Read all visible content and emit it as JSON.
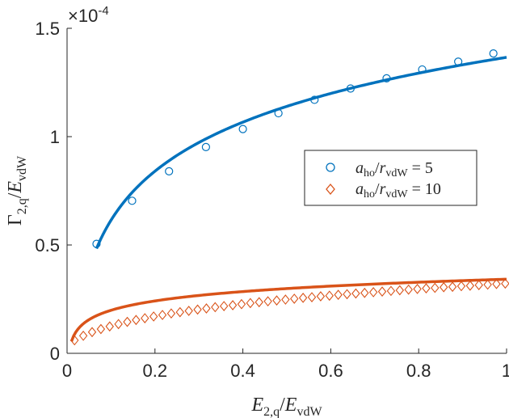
{
  "chart_data": {
    "type": "scatter",
    "xlim": [
      0,
      1
    ],
    "ylim": [
      0,
      1.5
    ],
    "x_ticks": [
      "0",
      "0.2",
      "0.4",
      "0.6",
      "0.8",
      "1"
    ],
    "y_ticks": [
      "0",
      "0.5",
      "1",
      "1.5"
    ],
    "y_exponent_label": "×10",
    "y_exponent_power": "-4",
    "xlabel": {
      "main": "E",
      "sub": "2,q",
      "sep": "/",
      "main2": "E",
      "sub2": "vdW"
    },
    "ylabel": {
      "main": "Γ",
      "sub": "2,q",
      "sep": "/",
      "main2": "E",
      "sub2": "vdW"
    },
    "grid": false,
    "legend_position": "center-right",
    "series": [
      {
        "name": "a_ho/r_vdW = 5",
        "legend": {
          "a": "a",
          "a_sub": "ho",
          "r": "r",
          "r_sub": "vdW",
          "eq": " = 5"
        },
        "color": "#0072BD",
        "marker": "circle",
        "points": [
          [
            0.067,
            0.505
          ],
          [
            0.148,
            0.704
          ],
          [
            0.232,
            0.84
          ],
          [
            0.316,
            0.952
          ],
          [
            0.4,
            1.035
          ],
          [
            0.481,
            1.108
          ],
          [
            0.563,
            1.17
          ],
          [
            0.645,
            1.222
          ],
          [
            0.727,
            1.269
          ],
          [
            0.808,
            1.31
          ],
          [
            0.89,
            1.346
          ],
          [
            0.97,
            1.384
          ]
        ],
        "fit_curve": {
          "type": "log",
          "x_range": [
            0.067,
            1.0
          ],
          "a": 1.366,
          "b": 0.3265
        }
      },
      {
        "name": "a_ho/r_vdW = 10",
        "legend": {
          "a": "a",
          "a_sub": "ho",
          "r": "r",
          "r_sub": "vdW",
          "eq": " = 10"
        },
        "color": "#D95319",
        "marker": "diamond",
        "points": [
          [
            0.017,
            0.06
          ],
          [
            0.037,
            0.081
          ],
          [
            0.057,
            0.098
          ],
          [
            0.077,
            0.112
          ],
          [
            0.097,
            0.124
          ],
          [
            0.117,
            0.135
          ],
          [
            0.137,
            0.145
          ],
          [
            0.157,
            0.154
          ],
          [
            0.177,
            0.162
          ],
          [
            0.197,
            0.17
          ],
          [
            0.217,
            0.177
          ],
          [
            0.237,
            0.184
          ],
          [
            0.257,
            0.19
          ],
          [
            0.277,
            0.196
          ],
          [
            0.297,
            0.202
          ],
          [
            0.317,
            0.207
          ],
          [
            0.337,
            0.213
          ],
          [
            0.357,
            0.218
          ],
          [
            0.377,
            0.222
          ],
          [
            0.397,
            0.227
          ],
          [
            0.417,
            0.232
          ],
          [
            0.437,
            0.236
          ],
          [
            0.457,
            0.24
          ],
          [
            0.477,
            0.244
          ],
          [
            0.497,
            0.248
          ],
          [
            0.517,
            0.252
          ],
          [
            0.537,
            0.256
          ],
          [
            0.557,
            0.259
          ],
          [
            0.577,
            0.263
          ],
          [
            0.597,
            0.266
          ],
          [
            0.617,
            0.27
          ],
          [
            0.637,
            0.273
          ],
          [
            0.657,
            0.276
          ],
          [
            0.677,
            0.279
          ],
          [
            0.697,
            0.282
          ],
          [
            0.717,
            0.285
          ],
          [
            0.737,
            0.288
          ],
          [
            0.757,
            0.291
          ],
          [
            0.777,
            0.294
          ],
          [
            0.797,
            0.297
          ],
          [
            0.817,
            0.3
          ],
          [
            0.837,
            0.302
          ],
          [
            0.857,
            0.305
          ],
          [
            0.877,
            0.307
          ],
          [
            0.897,
            0.31
          ],
          [
            0.917,
            0.312
          ],
          [
            0.937,
            0.315
          ],
          [
            0.957,
            0.317
          ],
          [
            0.977,
            0.32
          ],
          [
            0.997,
            0.322
          ]
        ],
        "fit_curve": {
          "type": "log",
          "x_range": [
            0.01,
            1.0
          ],
          "a": 0.342,
          "b": 0.0623
        }
      }
    ]
  }
}
